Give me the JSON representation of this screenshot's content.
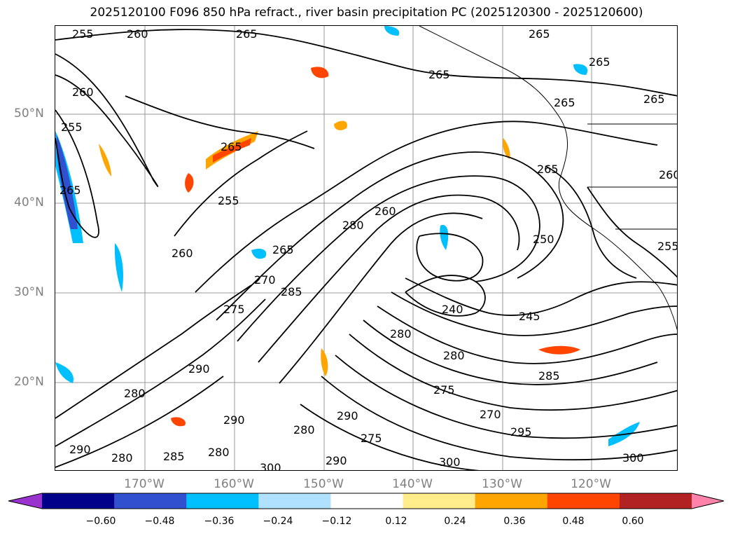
{
  "title": "2025120100 F096 850 hPa refract., river basin precipitation PC (2025120300 - 2025120600)",
  "lat_labels": [
    "50°N",
    "40°N",
    "30°N",
    "20°N"
  ],
  "lon_labels": [
    "170°W",
    "160°W",
    "150°W",
    "140°W",
    "130°W",
    "120°W"
  ],
  "contour_labels": [
    "255",
    "260",
    "265",
    "265",
    "265",
    "265",
    "265",
    "265",
    "265",
    "260",
    "255",
    "265",
    "265",
    "260",
    "280",
    "250",
    "260",
    "265",
    "270",
    "285",
    "275",
    "240",
    "245",
    "255",
    "280",
    "280",
    "290",
    "275",
    "280",
    "285",
    "290",
    "280",
    "270",
    "295",
    "290",
    "280",
    "280",
    "275",
    "285",
    "300",
    "290",
    "300",
    "290",
    "300",
    "260",
    "255"
  ],
  "colorbar": {
    "ticks": [
      "−0.60",
      "−0.48",
      "−0.36",
      "−0.24",
      "−0.12",
      "0.12",
      "0.24",
      "0.36",
      "0.48",
      "0.60"
    ],
    "colors": [
      "#9a32cd",
      "#00008b",
      "#3050d0",
      "#00bfff",
      "#b0e2ff",
      "#ffffff",
      "#ffec8b",
      "#ffa500",
      "#ff4500",
      "#b22222",
      "#ff82ab"
    ]
  },
  "colors": {
    "contour": "#000000",
    "grid": "#999999",
    "axis_label": "#808080"
  }
}
